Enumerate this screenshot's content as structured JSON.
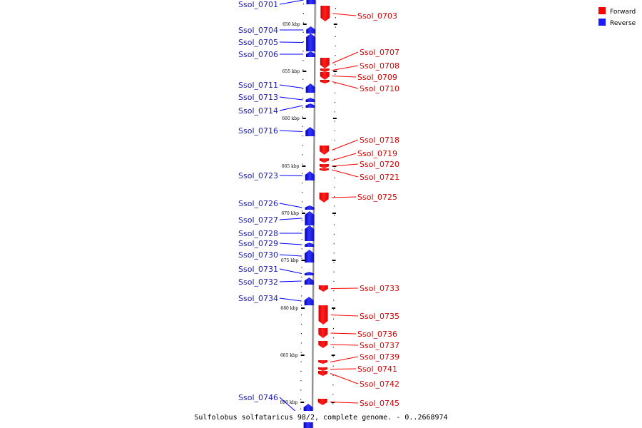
{
  "caption": "Sulfolobus solfataricus 98/2, complete genome. - 0..2668974",
  "legend": {
    "forward_label": "Forward",
    "reverse_label": "Reverse",
    "forward_color": "#ff0000",
    "reverse_color": "#1a1aff"
  },
  "backbone_color": "#888888",
  "ticks": [
    {
      "kbp": 650,
      "label": "650 kbp"
    },
    {
      "kbp": 655,
      "label": "655 kbp"
    },
    {
      "kbp": 660,
      "label": "660 kbp"
    },
    {
      "kbp": 665,
      "label": "665 kbp"
    },
    {
      "kbp": 670,
      "label": "670 kbp"
    },
    {
      "kbp": 675,
      "label": "675 kbp"
    },
    {
      "kbp": 680,
      "label": "680 kbp"
    },
    {
      "kbp": 685,
      "label": "685 kbp"
    },
    {
      "kbp": 690,
      "label": "690 kbp"
    }
  ],
  "reverse_genes": [
    {
      "name": "Ssol_0701"
    },
    {
      "name": "Ssol_0704"
    },
    {
      "name": "Ssol_0705"
    },
    {
      "name": "Ssol_0706"
    },
    {
      "name": "Ssol_0711"
    },
    {
      "name": "Ssol_0713"
    },
    {
      "name": "Ssol_0714"
    },
    {
      "name": "Ssol_0716"
    },
    {
      "name": "Ssol_0723"
    },
    {
      "name": "Ssol_0726"
    },
    {
      "name": "Ssol_0727"
    },
    {
      "name": "Ssol_0728"
    },
    {
      "name": "Ssol_0729"
    },
    {
      "name": "Ssol_0730"
    },
    {
      "name": "Ssol_0731"
    },
    {
      "name": "Ssol_0732"
    },
    {
      "name": "Ssol_0734"
    },
    {
      "name": "Ssol_0746"
    }
  ],
  "forward_genes": [
    {
      "name": "Ssol_0703"
    },
    {
      "name": "Ssol_0707"
    },
    {
      "name": "Ssol_0708"
    },
    {
      "name": "Ssol_0709"
    },
    {
      "name": "Ssol_0710"
    },
    {
      "name": "Ssol_0718"
    },
    {
      "name": "Ssol_0719"
    },
    {
      "name": "Ssol_0720"
    },
    {
      "name": "Ssol_0721"
    },
    {
      "name": "Ssol_0725"
    },
    {
      "name": "Ssol_0733"
    },
    {
      "name": "Ssol_0735"
    },
    {
      "name": "Ssol_0736"
    },
    {
      "name": "Ssol_0737"
    },
    {
      "name": "Ssol_0739"
    },
    {
      "name": "Ssol_0741"
    },
    {
      "name": "Ssol_0742"
    },
    {
      "name": "Ssol_0745"
    }
  ]
}
